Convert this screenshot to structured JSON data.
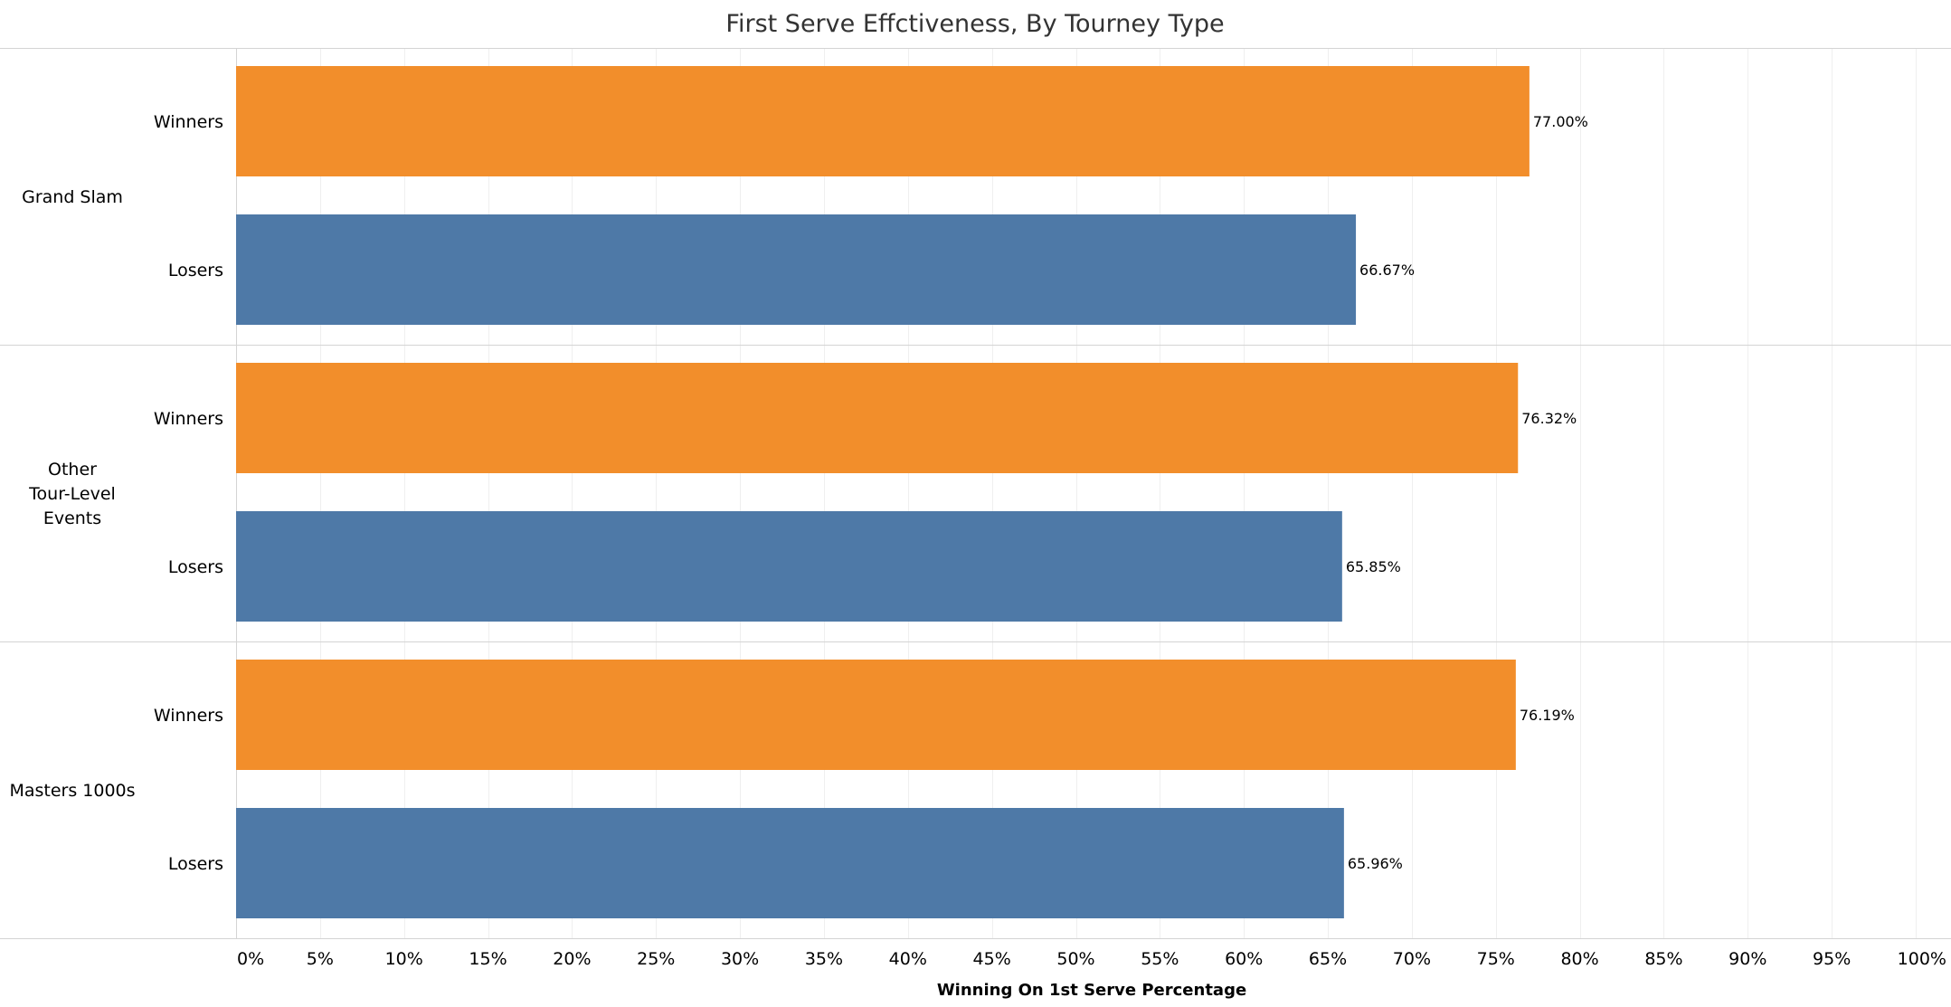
{
  "colors": {
    "Winners": "#F28E2B",
    "Losers": "#4E79A7",
    "gridline": "#EFEFEF",
    "divider": "#D4D4D4"
  },
  "chart_data": {
    "type": "bar",
    "orientation": "horizontal",
    "title": "First Serve Effctiveness, By Tourney Type",
    "xlabel": "Winning On 1st Serve Percentage",
    "ylabel": "",
    "xlim": [
      0,
      100
    ],
    "x_ticks": [
      0,
      5,
      10,
      15,
      20,
      25,
      30,
      35,
      40,
      45,
      50,
      55,
      60,
      65,
      70,
      75,
      80,
      85,
      90,
      95,
      100
    ],
    "tick_format": "{v}%",
    "value_format": "2 decimals, percent",
    "grid": true,
    "legend": "none",
    "groups": [
      {
        "label_lines": [
          "Grand Slam"
        ],
        "bars": [
          {
            "category": "Winners",
            "value": 77.0,
            "label": "77.00%"
          },
          {
            "category": "Losers",
            "value": 66.67,
            "label": "66.67%"
          }
        ]
      },
      {
        "label_lines": [
          "Other",
          "Tour-Level",
          "Events"
        ],
        "bars": [
          {
            "category": "Winners",
            "value": 76.32,
            "label": "76.32%"
          },
          {
            "category": "Losers",
            "value": 65.85,
            "label": "65.85%"
          }
        ]
      },
      {
        "label_lines": [
          "Masters 1000s"
        ],
        "bars": [
          {
            "category": "Winners",
            "value": 76.19,
            "label": "76.19%"
          },
          {
            "category": "Losers",
            "value": 65.96,
            "label": "65.96%"
          }
        ]
      }
    ]
  }
}
